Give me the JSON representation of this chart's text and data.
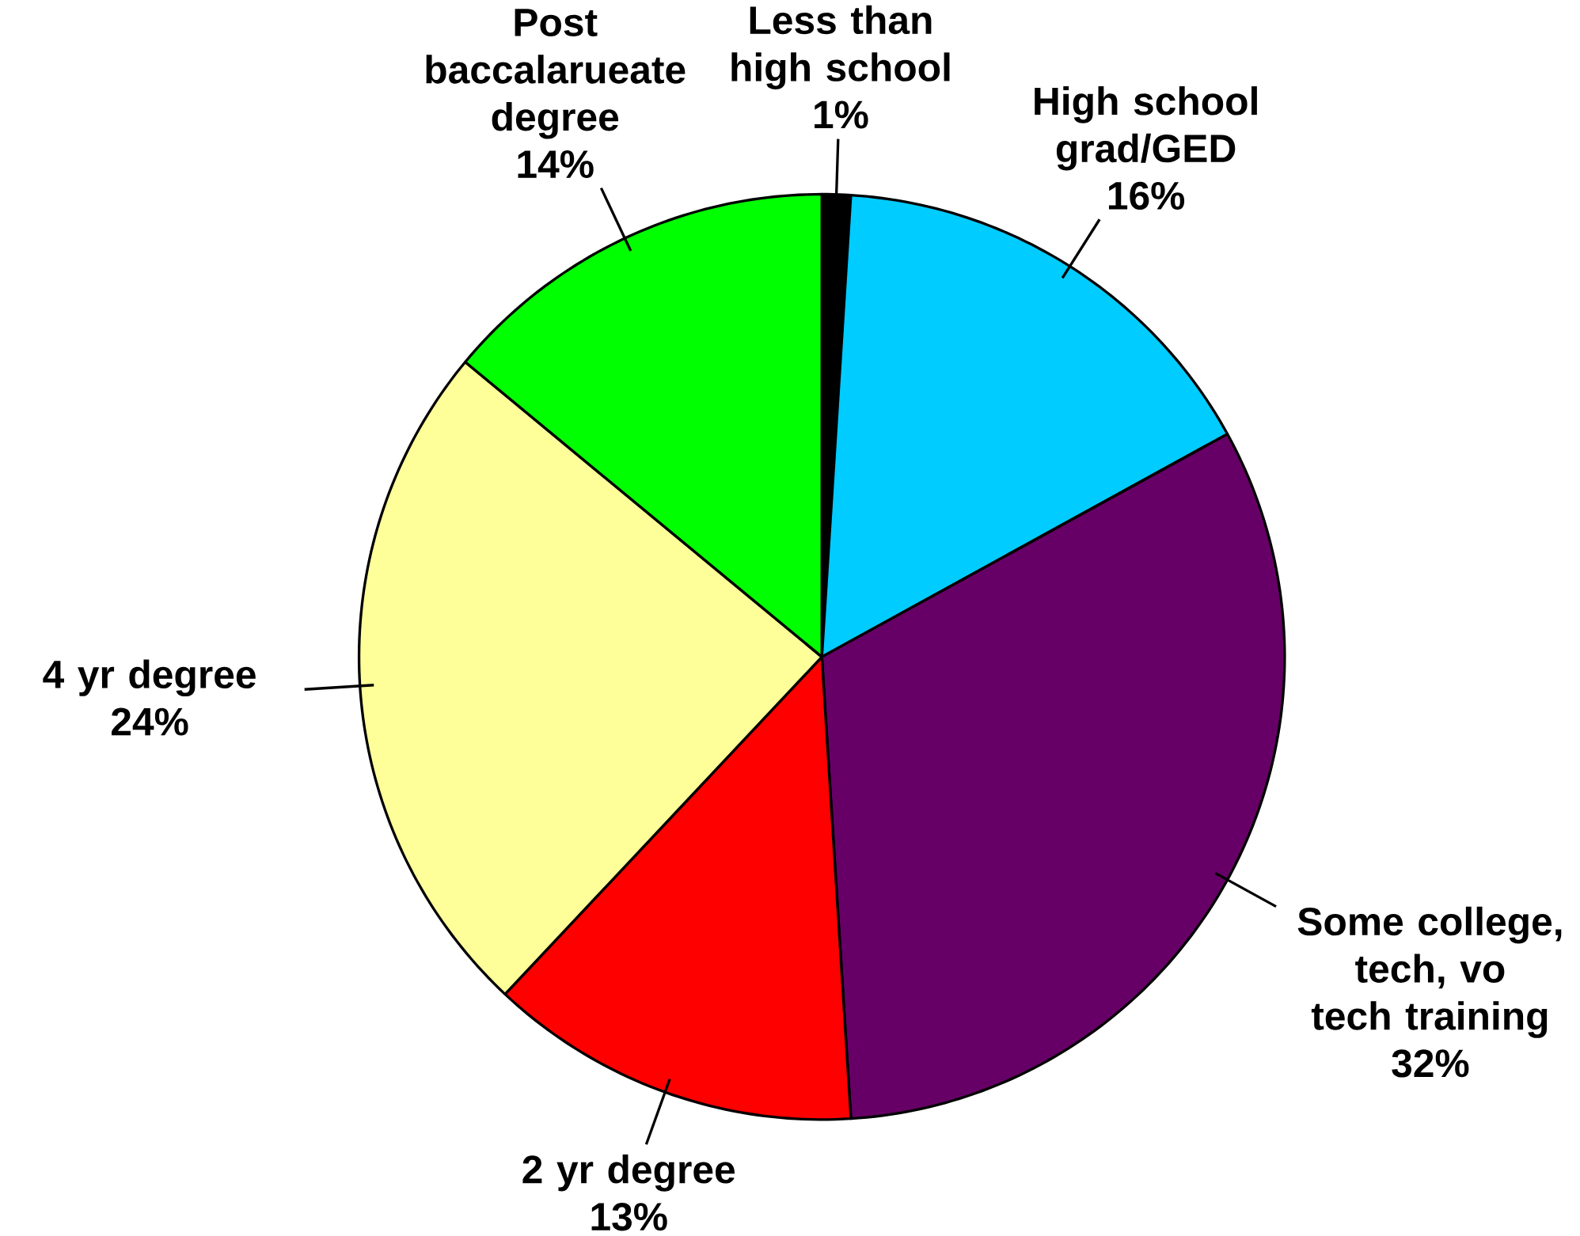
{
  "chart_data": {
    "type": "pie",
    "categories": [
      "Less than high school",
      "High school grad/GED",
      "Some college, tech, vo tech training",
      "2 yr degree",
      "4 yr degree",
      "Post baccalarueate degree"
    ],
    "values": [
      1,
      16,
      32,
      13,
      24,
      14
    ],
    "colors": [
      "#000000",
      "#00ccff",
      "#660066",
      "#ff0000",
      "#ffff99",
      "#00ff00"
    ],
    "value_labels": [
      "1%",
      "16%",
      "32%",
      "13%",
      "24%",
      "14%"
    ]
  }
}
